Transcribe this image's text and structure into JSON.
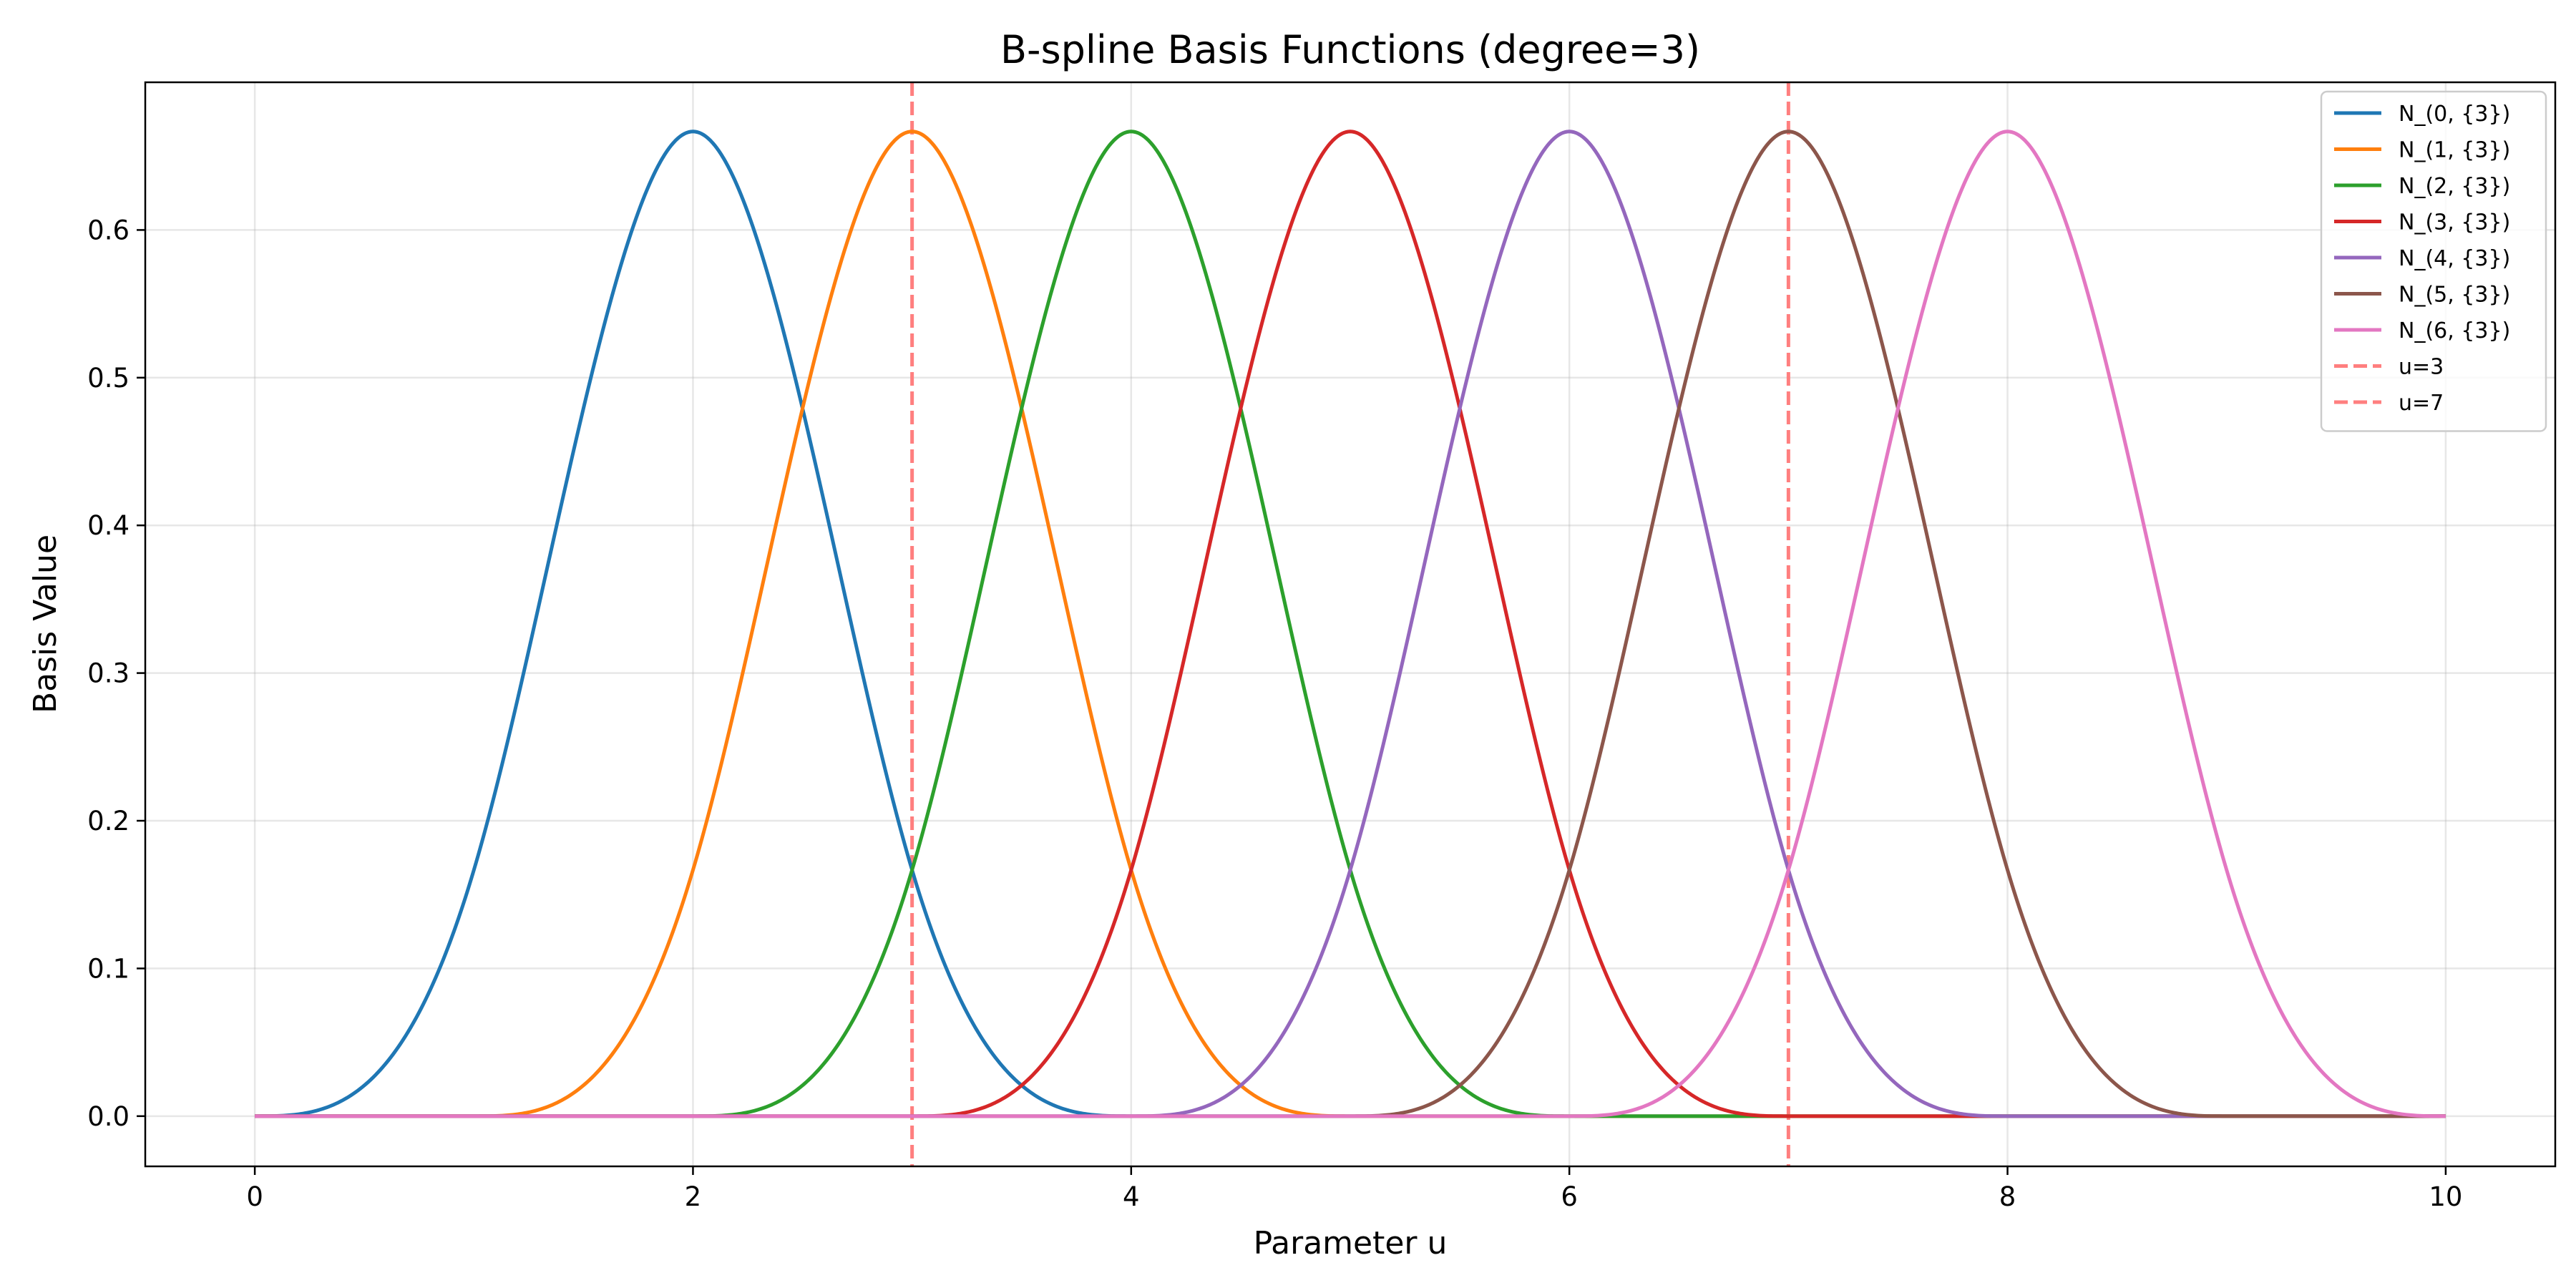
{
  "chart_data": {
    "type": "line",
    "title": "B-spline Basis Functions (degree=3)",
    "xlabel": "Parameter u",
    "ylabel": "Basis Value",
    "xlim": [
      -0.5,
      10.5
    ],
    "ylim": [
      -0.034,
      0.7
    ],
    "xticks": [
      0,
      2,
      4,
      6,
      8,
      10
    ],
    "yticks": [
      0.0,
      0.1,
      0.2,
      0.3,
      0.4,
      0.5,
      0.6
    ],
    "grid": true,
    "legend_position": "top-right",
    "degree": 3,
    "series": [
      {
        "name": "N_(0, {3})",
        "color": "#1f77b4",
        "knot_start": 0,
        "peak": [
          2,
          0.6667
        ]
      },
      {
        "name": "N_(1, {3})",
        "color": "#ff7f0e",
        "knot_start": 1,
        "peak": [
          3,
          0.6667
        ]
      },
      {
        "name": "N_(2, {3})",
        "color": "#2ca02c",
        "knot_start": 2,
        "peak": [
          4,
          0.6667
        ]
      },
      {
        "name": "N_(3, {3})",
        "color": "#d62728",
        "knot_start": 3,
        "peak": [
          5,
          0.6667
        ]
      },
      {
        "name": "N_(4, {3})",
        "color": "#9467bd",
        "knot_start": 4,
        "peak": [
          6,
          0.6667
        ]
      },
      {
        "name": "N_(5, {3})",
        "color": "#8c564b",
        "knot_start": 5,
        "peak": [
          7,
          0.6667
        ]
      },
      {
        "name": "N_(6, {3})",
        "color": "#e377c2",
        "knot_start": 6,
        "peak": [
          8,
          0.6667
        ]
      }
    ],
    "vlines": [
      {
        "name": "u=3",
        "x": 3,
        "color": "#ff7f7f",
        "style": "dashed"
      },
      {
        "name": "u=7",
        "x": 7,
        "color": "#ff7f7f",
        "style": "dashed"
      }
    ]
  }
}
